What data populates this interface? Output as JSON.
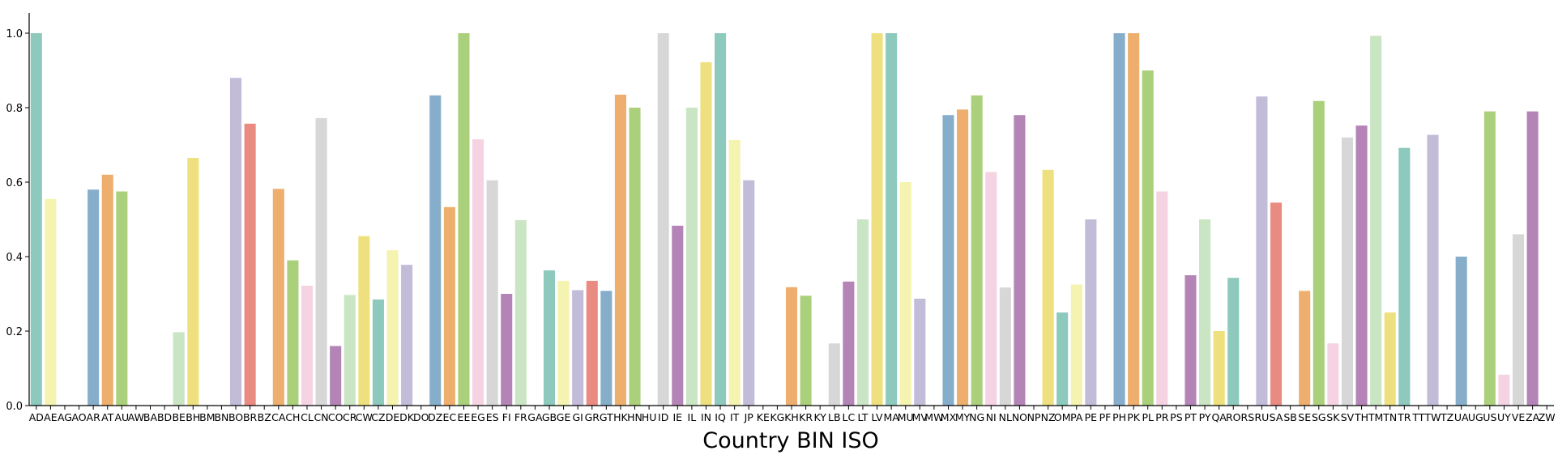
{
  "chart_data": {
    "type": "bar",
    "xlabel": "Country BIN ISO",
    "ylabel": "",
    "ylim": [
      0,
      1.0
    ],
    "yticks": [
      "0.0",
      "0.2",
      "0.4",
      "0.6",
      "0.8",
      "1.0"
    ],
    "grid": false,
    "categories": [
      "AD",
      "AE",
      "AG",
      "AO",
      "AR",
      "AT",
      "AU",
      "AW",
      "BA",
      "BD",
      "BE",
      "BH",
      "BM",
      "BN",
      "BO",
      "BR",
      "BZ",
      "CA",
      "CH",
      "CL",
      "CN",
      "CO",
      "CR",
      "CW",
      "CZ",
      "DE",
      "DK",
      "DO",
      "DZ",
      "EC",
      "EE",
      "EG",
      "ES",
      "FI",
      "FR",
      "GA",
      "GB",
      "GE",
      "GI",
      "GR",
      "GT",
      "HK",
      "HN",
      "HU",
      "ID",
      "IE",
      "IL",
      "IN",
      "IQ",
      "IT",
      "JP",
      "KE",
      "KG",
      "KH",
      "KR",
      "KY",
      "LB",
      "LC",
      "LT",
      "LV",
      "MA",
      "MU",
      "MV",
      "MW",
      "MX",
      "MY",
      "NG",
      "NI",
      "NL",
      "NO",
      "NP",
      "NZ",
      "OM",
      "PA",
      "PE",
      "PF",
      "PH",
      "PK",
      "PL",
      "PR",
      "PS",
      "PT",
      "PY",
      "QA",
      "RO",
      "RS",
      "RU",
      "SA",
      "SB",
      "SE",
      "SG",
      "SK",
      "SV",
      "TH",
      "TM",
      "TN",
      "TR",
      "TT",
      "TW",
      "TZ",
      "UA",
      "UG",
      "US",
      "UY",
      "VE",
      "ZA",
      "ZW"
    ],
    "values": [
      1.0,
      0.555,
      0,
      0,
      0.58,
      0.62,
      0.575,
      0,
      0,
      0,
      0.197,
      0.665,
      0,
      0,
      0.88,
      0.757,
      0,
      0.582,
      0.39,
      0.322,
      0.772,
      0.16,
      0.297,
      0.455,
      0.285,
      0.417,
      0.378,
      0,
      0.833,
      0.533,
      1.0,
      0.715,
      0.605,
      0.3,
      0.498,
      0,
      0.363,
      0.335,
      0.31,
      0.335,
      0.308,
      0.835,
      0.8,
      0,
      1.0,
      0.483,
      0.8,
      0.922,
      1.0,
      0.713,
      0.605,
      0,
      0,
      0.318,
      0.295,
      0,
      0.167,
      0.333,
      0.5,
      1.0,
      1.0,
      0.6,
      0.287,
      0,
      0.78,
      0.795,
      0.833,
      0.627,
      0.317,
      0.78,
      0,
      0.633,
      0.25,
      0.325,
      0.5,
      0,
      1.0,
      1.0,
      0.9,
      0.575,
      0,
      0.35,
      0.5,
      0.2,
      0.343,
      0,
      0.83,
      0.545,
      0,
      0.308,
      0.818,
      0.167,
      0.72,
      0.752,
      0.993,
      0.25,
      0.692,
      0,
      0.727,
      0,
      0.4,
      0,
      0.79,
      0.083,
      0.46,
      0.79,
      0
    ],
    "colors": [
      "#8dc9bc",
      "#f4f3b0",
      "#c2bcd8",
      "#ea8b82",
      "#86aecb",
      "#eeae6e",
      "#abd07b",
      "#f5d3e3",
      "#d7d7d7",
      "#b484b6",
      "#c9e5c3",
      "#eee07e"
    ]
  }
}
